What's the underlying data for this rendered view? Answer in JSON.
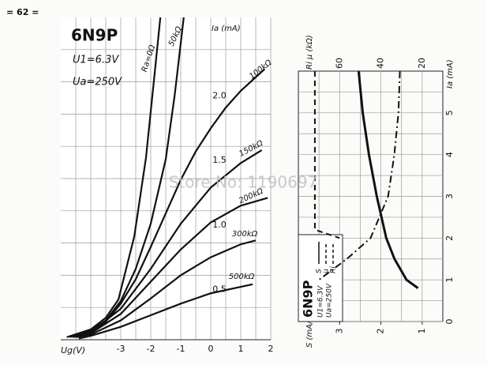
{
  "page_number": "= 62 =",
  "watermark": "Store No: 1190697",
  "chart_data": [
    {
      "type": "line",
      "title": "6N9P",
      "annotations": [
        "U1=6.3V",
        "Ua=250V"
      ],
      "xlabel": "Ug(V)",
      "ylabel": "Ia (mA)",
      "xlim": [
        -5,
        2
      ],
      "xticks": [
        -3,
        -2,
        -1,
        0,
        1,
        2
      ],
      "ylim": [
        0,
        2.5
      ],
      "yticks": [
        0.5,
        {
          "value": 1,
          "label": "1.0"
        },
        1.5,
        {
          "value": 2,
          "label": "2.0"
        }
      ],
      "grid": true,
      "xgrid": [
        -4.5,
        -4,
        -3.5,
        -2.5,
        -1.5,
        -0.5,
        0.5,
        1.5
      ],
      "ygrid": [
        0.25,
        0.75,
        1.25,
        1.75,
        2.25
      ],
      "series": [
        {
          "name": "Ra=0Ω",
          "color": "#111111",
          "x": [
            -4.8,
            -4,
            -3.5,
            -3.08,
            -2.55,
            -2.16,
            -1.89,
            -1.68
          ],
          "values": [
            0.02,
            0.08,
            0.17,
            0.31,
            0.8,
            1.41,
            2.02,
            2.5
          ]
        },
        {
          "name": "50kΩ",
          "color": "#111111",
          "x": [
            -4.7,
            -4,
            -3.5,
            -3,
            -2.5,
            -2,
            -1.5,
            -1.2,
            -0.9
          ],
          "values": [
            0.02,
            0.07,
            0.15,
            0.3,
            0.55,
            0.9,
            1.4,
            1.9,
            2.5
          ]
        },
        {
          "name": "100kΩ",
          "color": "#111111",
          "x": [
            -4.6,
            -4,
            -3.5,
            -3,
            -2.5,
            -2,
            -1.5,
            -1,
            -0.5,
            0,
            0.5,
            1,
            1.8
          ],
          "values": [
            0.02,
            0.06,
            0.14,
            0.28,
            0.47,
            0.72,
            0.98,
            1.24,
            1.46,
            1.64,
            1.8,
            1.93,
            2.1
          ]
        },
        {
          "name": "150kΩ",
          "color": "#111111",
          "x": [
            -4.6,
            -4,
            -3,
            -2,
            -1,
            0,
            1,
            1.7
          ],
          "values": [
            0.02,
            0.06,
            0.24,
            0.55,
            0.9,
            1.18,
            1.37,
            1.47
          ]
        },
        {
          "name": "200kΩ",
          "color": "#111111",
          "x": [
            -4.5,
            -4,
            -3,
            -2,
            -1,
            0,
            1,
            1.9
          ],
          "values": [
            0.02,
            0.05,
            0.2,
            0.45,
            0.7,
            0.91,
            1.04,
            1.1
          ]
        },
        {
          "name": "300kΩ",
          "color": "#111111",
          "x": [
            -4.5,
            -4,
            -3,
            -2,
            -1,
            0,
            1,
            1.5
          ],
          "values": [
            0.02,
            0.04,
            0.15,
            0.32,
            0.5,
            0.64,
            0.74,
            0.77
          ]
        },
        {
          "name": "500kΩ",
          "color": "#111111",
          "x": [
            -4.4,
            -4,
            -3,
            -2,
            -1,
            0,
            1,
            1.4
          ],
          "values": [
            0.01,
            0.03,
            0.1,
            0.19,
            0.28,
            0.36,
            0.41,
            0.43
          ]
        }
      ]
    },
    {
      "type": "line",
      "title": "6N9P",
      "annotations": [
        "U1=6.3V",
        "Ua=250V"
      ],
      "xlabel": "Ri μ (kΩ)",
      "x2label": "S (mA/V)",
      "ylabel": "Ia (mA)",
      "xlim": [
        80,
        10
      ],
      "xticks": [
        60,
        40,
        20
      ],
      "x2lim": [
        4,
        0.5
      ],
      "x2ticks": [
        3,
        2,
        1
      ],
      "ylim": [
        0,
        6
      ],
      "yticks": [
        0,
        1,
        2,
        3,
        4,
        5
      ],
      "grid": true,
      "xgrid": [
        70,
        50,
        30
      ],
      "ygrid": [
        0.5,
        1.5,
        2.5,
        3.5,
        4.5,
        5.5
      ],
      "series": [
        {
          "name": "S",
          "color": "#111111",
          "style": "solid",
          "axis": "x2",
          "x": [
            2.54,
            2.44,
            2.29,
            2.1,
            1.87,
            1.67,
            1.38,
            1.1
          ],
          "values": [
            6,
            5,
            4,
            3,
            2,
            1.5,
            1,
            0.8
          ]
        },
        {
          "name": "μ",
          "color": "#111111",
          "style": "dashed",
          "x": [
            72,
            72,
            72,
            72,
            72,
            60
          ],
          "values": [
            6,
            5,
            4,
            3,
            2.2,
            2.0
          ]
        },
        {
          "name": "Ri",
          "color": "#111111",
          "style": "dashdot",
          "x": [
            30.8,
            31.5,
            33.5,
            36.5,
            45,
            56.5,
            70
          ],
          "values": [
            6,
            5,
            4,
            3,
            2,
            1.5,
            1
          ]
        }
      ]
    }
  ]
}
